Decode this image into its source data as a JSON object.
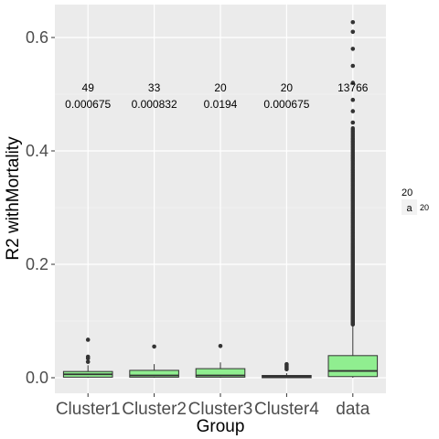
{
  "chart_data": {
    "type": "box",
    "title": "",
    "xlabel": "Group",
    "ylabel": "R2 withMortality",
    "ylim": [
      -0.03,
      0.645
    ],
    "yticks": [
      0.0,
      0.2,
      0.4,
      0.6
    ],
    "ytick_labels": [
      "0.0",
      "0.2",
      "0.4",
      "0.6"
    ],
    "grid": true,
    "box_fill": "#90ee90",
    "panel_bg": "#ebebeb",
    "categories": [
      "Cluster1",
      "Cluster2",
      "Cluster3",
      "Cluster4",
      "data"
    ],
    "boxes": [
      {
        "group": "Cluster1",
        "q1": 0.001,
        "median": 0.006,
        "q3": 0.011,
        "whisker_low": 0.0,
        "whisker_high": 0.022,
        "outliers": [
          0.028,
          0.034,
          0.037,
          0.067
        ]
      },
      {
        "group": "Cluster2",
        "q1": 0.001,
        "median": 0.004,
        "q3": 0.013,
        "whisker_low": 0.0,
        "whisker_high": 0.024,
        "outliers": [
          0.055
        ]
      },
      {
        "group": "Cluster3",
        "q1": 0.001,
        "median": 0.004,
        "q3": 0.016,
        "whisker_low": 0.0,
        "whisker_high": 0.027,
        "outliers": [
          0.056
        ]
      },
      {
        "group": "Cluster4",
        "q1": 0.0,
        "median": 0.002,
        "q3": 0.004,
        "whisker_low": 0.0,
        "whisker_high": 0.008,
        "outliers": [
          0.015,
          0.018,
          0.021,
          0.024
        ]
      },
      {
        "group": "data",
        "q1": 0.002,
        "median": 0.012,
        "q3": 0.039,
        "whisker_low": 0.0,
        "whisker_high": 0.094,
        "outlier_range": [
          0.094,
          0.44
        ],
        "outliers": [
          0.45,
          0.47,
          0.49,
          0.52,
          0.55,
          0.58,
          0.61,
          0.627
        ]
      }
    ],
    "annotations": [
      {
        "group": "Cluster1",
        "line1": "49",
        "line2": "0.000675"
      },
      {
        "group": "Cluster2",
        "line1": "33",
        "line2": "0.000832"
      },
      {
        "group": "Cluster3",
        "line1": "20",
        "line2": "0.0194"
      },
      {
        "group": "Cluster4",
        "line1": "20",
        "line2": "0.000675"
      },
      {
        "group": "data",
        "line1": "13766",
        "line2": ""
      }
    ],
    "legend": {
      "title": "20",
      "key_label": "a",
      "item_label": "20",
      "placement": "right"
    }
  }
}
